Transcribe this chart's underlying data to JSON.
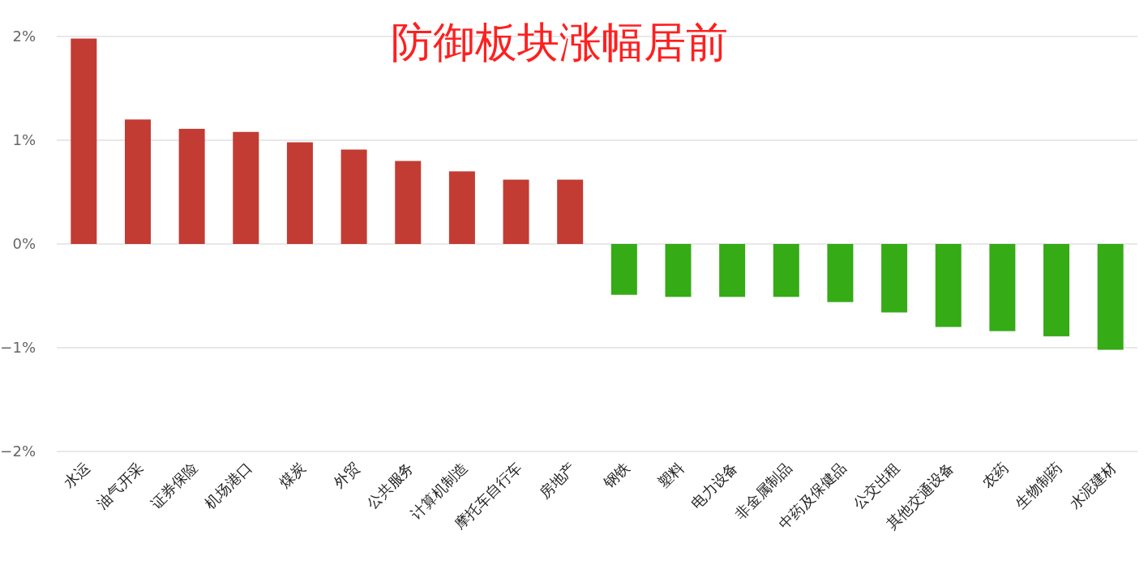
{
  "chart_data": {
    "type": "bar",
    "title": "防御板块涨幅居前",
    "categories": [
      "水运",
      "油气开采",
      "证券保险",
      "机场港口",
      "煤炭",
      "外贸",
      "公共服务",
      "计算机制造",
      "摩托车自行车",
      "房地产",
      "钢铁",
      "塑料",
      "电力设备",
      "非金属制品",
      "中药及保健品",
      "公交出租",
      "其他交通设备",
      "农药",
      "生物制药",
      "水泥建材"
    ],
    "values": [
      1.98,
      1.2,
      1.11,
      1.08,
      0.98,
      0.91,
      0.8,
      0.7,
      0.62,
      0.62,
      -0.49,
      -0.51,
      -0.51,
      -0.51,
      -0.56,
      -0.66,
      -0.8,
      -0.84,
      -0.89,
      -1.02
    ],
    "colors": [
      "#c23c33",
      "#c23c33",
      "#c23c33",
      "#c23c33",
      "#c23c33",
      "#c23c33",
      "#c23c33",
      "#c23c33",
      "#c23c33",
      "#c23c33",
      "#35ab16",
      "#35ab16",
      "#35ab16",
      "#35ab16",
      "#35ab16",
      "#35ab16",
      "#35ab16",
      "#35ab16",
      "#35ab16",
      "#35ab16"
    ],
    "ylim": [
      -2,
      2
    ],
    "yticks": [
      {
        "value": 2,
        "label": "2%"
      },
      {
        "value": 1,
        "label": "1%"
      },
      {
        "value": 0,
        "label": "0%"
      },
      {
        "value": -1,
        "label": "−1%"
      },
      {
        "value": -2,
        "label": "−2%"
      }
    ],
    "grid": "y"
  }
}
